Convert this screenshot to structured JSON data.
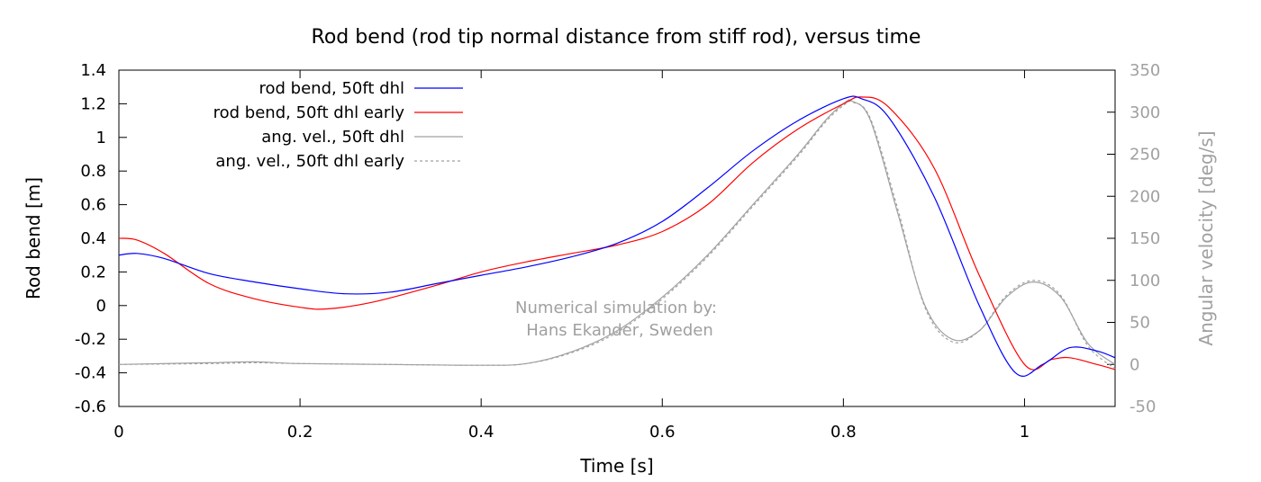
{
  "chart_data": {
    "type": "line",
    "title": "Rod bend (rod tip normal distance from stiff rod), versus time",
    "xlabel": "Time [s]",
    "ylabel": "Rod bend [m]",
    "y2label": "Angular velocity [deg/s]",
    "xlim": [
      0,
      1.1
    ],
    "ylim": [
      -0.6,
      1.4
    ],
    "y2lim": [
      -50,
      350
    ],
    "xticks": [
      "0",
      "0.2",
      "0.4",
      "0.6",
      "0.8",
      "1"
    ],
    "yticks": [
      "-0.6",
      "-0.4",
      "-0.2",
      "0",
      "0.2",
      "0.4",
      "0.6",
      "0.8",
      "1",
      "1.2",
      "1.4"
    ],
    "y2ticks": [
      "-50",
      "0",
      "50",
      "100",
      "150",
      "200",
      "250",
      "300",
      "350"
    ],
    "annotation": [
      "Numerical simulation by:",
      "Hans Ekander, Sweden"
    ],
    "legend_position": "top-left",
    "series": [
      {
        "name": "rod bend, 50ft dhl",
        "axis": "y",
        "color": "#0000ff",
        "dash": "solid",
        "points": [
          [
            0,
            0.3
          ],
          [
            0.02,
            0.31
          ],
          [
            0.05,
            0.28
          ],
          [
            0.1,
            0.19
          ],
          [
            0.15,
            0.14
          ],
          [
            0.2,
            0.1
          ],
          [
            0.25,
            0.07
          ],
          [
            0.3,
            0.08
          ],
          [
            0.35,
            0.13
          ],
          [
            0.4,
            0.18
          ],
          [
            0.45,
            0.23
          ],
          [
            0.5,
            0.29
          ],
          [
            0.55,
            0.37
          ],
          [
            0.6,
            0.5
          ],
          [
            0.65,
            0.7
          ],
          [
            0.7,
            0.92
          ],
          [
            0.75,
            1.1
          ],
          [
            0.8,
            1.23
          ],
          [
            0.82,
            1.23
          ],
          [
            0.85,
            1.12
          ],
          [
            0.9,
            0.65
          ],
          [
            0.95,
            0.0
          ],
          [
            0.99,
            -0.4
          ],
          [
            1.02,
            -0.35
          ],
          [
            1.05,
            -0.25
          ],
          [
            1.08,
            -0.27
          ],
          [
            1.1,
            -0.31
          ]
        ]
      },
      {
        "name": "rod bend, 50ft dhl early",
        "axis": "y",
        "color": "#ff0000",
        "dash": "solid",
        "points": [
          [
            0,
            0.4
          ],
          [
            0.02,
            0.39
          ],
          [
            0.05,
            0.31
          ],
          [
            0.1,
            0.13
          ],
          [
            0.15,
            0.04
          ],
          [
            0.2,
            -0.01
          ],
          [
            0.23,
            -0.02
          ],
          [
            0.28,
            0.02
          ],
          [
            0.35,
            0.12
          ],
          [
            0.4,
            0.2
          ],
          [
            0.45,
            0.26
          ],
          [
            0.5,
            0.31
          ],
          [
            0.55,
            0.36
          ],
          [
            0.6,
            0.44
          ],
          [
            0.65,
            0.6
          ],
          [
            0.7,
            0.85
          ],
          [
            0.75,
            1.05
          ],
          [
            0.8,
            1.2
          ],
          [
            0.82,
            1.24
          ],
          [
            0.85,
            1.18
          ],
          [
            0.9,
            0.82
          ],
          [
            0.95,
            0.18
          ],
          [
            1.0,
            -0.35
          ],
          [
            1.03,
            -0.32
          ],
          [
            1.05,
            -0.31
          ],
          [
            1.08,
            -0.35
          ],
          [
            1.1,
            -0.38
          ]
        ]
      },
      {
        "name": "ang. vel., 50ft dhl",
        "axis": "y2",
        "color": "#a0a0a0",
        "dash": "solid",
        "points": [
          [
            0,
            0
          ],
          [
            0.1,
            2
          ],
          [
            0.15,
            3
          ],
          [
            0.2,
            1
          ],
          [
            0.3,
            0
          ],
          [
            0.4,
            -1
          ],
          [
            0.45,
            1
          ],
          [
            0.5,
            15
          ],
          [
            0.55,
            40
          ],
          [
            0.6,
            80
          ],
          [
            0.65,
            130
          ],
          [
            0.7,
            190
          ],
          [
            0.75,
            250
          ],
          [
            0.78,
            290
          ],
          [
            0.8,
            310
          ],
          [
            0.81,
            313
          ],
          [
            0.83,
            290
          ],
          [
            0.86,
            180
          ],
          [
            0.89,
            70
          ],
          [
            0.92,
            30
          ],
          [
            0.95,
            40
          ],
          [
            0.98,
            80
          ],
          [
            1.01,
            98
          ],
          [
            1.04,
            80
          ],
          [
            1.07,
            25
          ],
          [
            1.1,
            0
          ]
        ]
      },
      {
        "name": "ang. vel., 50ft dhl early",
        "axis": "y2",
        "color": "#a0a0a0",
        "dash": "dotted",
        "points": [
          [
            0,
            0
          ],
          [
            0.1,
            1
          ],
          [
            0.15,
            2
          ],
          [
            0.2,
            1
          ],
          [
            0.3,
            0
          ],
          [
            0.4,
            -1
          ],
          [
            0.45,
            1
          ],
          [
            0.5,
            14
          ],
          [
            0.55,
            38
          ],
          [
            0.6,
            78
          ],
          [
            0.65,
            128
          ],
          [
            0.7,
            188
          ],
          [
            0.75,
            248
          ],
          [
            0.78,
            288
          ],
          [
            0.8,
            308
          ],
          [
            0.81,
            312
          ],
          [
            0.83,
            292
          ],
          [
            0.86,
            185
          ],
          [
            0.89,
            68
          ],
          [
            0.92,
            27
          ],
          [
            0.95,
            40
          ],
          [
            0.98,
            82
          ],
          [
            1.01,
            100
          ],
          [
            1.04,
            82
          ],
          [
            1.07,
            22
          ],
          [
            1.1,
            -5
          ]
        ]
      }
    ]
  }
}
